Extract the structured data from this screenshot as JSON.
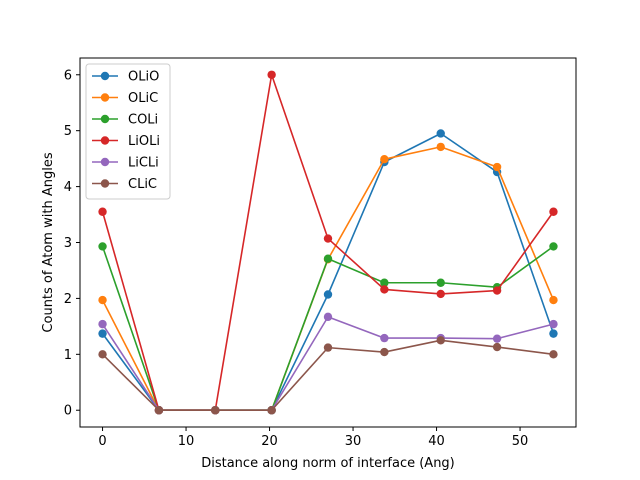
{
  "chart_data": {
    "type": "line",
    "title": "",
    "xlabel": "Distance along norm of interface (Ang)",
    "ylabel": "Counts of Atom with Angles",
    "x": [
      0,
      6.75,
      13.5,
      20.25,
      27.0,
      33.75,
      40.5,
      47.25,
      54.0
    ],
    "xlim": [
      -2.7,
      56.7
    ],
    "ylim": [
      -0.3,
      6.3
    ],
    "xticks": [
      0,
      10,
      20,
      30,
      40,
      50
    ],
    "yticks": [
      0,
      1,
      2,
      3,
      4,
      5,
      6
    ],
    "grid": false,
    "legend_position": "top-left",
    "series": [
      {
        "name": "OLiO",
        "color": "#1f77b4",
        "values": [
          1.37,
          0,
          0,
          0,
          2.07,
          4.44,
          4.95,
          4.26,
          1.37
        ]
      },
      {
        "name": "OLiC",
        "color": "#ff7f0e",
        "values": [
          1.97,
          0,
          0,
          0,
          2.7,
          4.49,
          4.71,
          4.35,
          1.97
        ]
      },
      {
        "name": "COLi",
        "color": "#2ca02c",
        "values": [
          2.93,
          0,
          0,
          0,
          2.71,
          2.28,
          2.28,
          2.2,
          2.93
        ]
      },
      {
        "name": "LiOLi",
        "color": "#d62728",
        "values": [
          3.55,
          0,
          0,
          6.0,
          3.07,
          2.16,
          2.08,
          2.14,
          3.55
        ]
      },
      {
        "name": "LiCLi",
        "color": "#9467bd",
        "values": [
          1.54,
          0,
          0,
          0,
          1.67,
          1.29,
          1.29,
          1.28,
          1.54
        ]
      },
      {
        "name": "CLiC",
        "color": "#8c564b",
        "values": [
          1.0,
          0,
          0,
          0,
          1.12,
          1.04,
          1.25,
          1.13,
          1.0
        ]
      }
    ]
  }
}
